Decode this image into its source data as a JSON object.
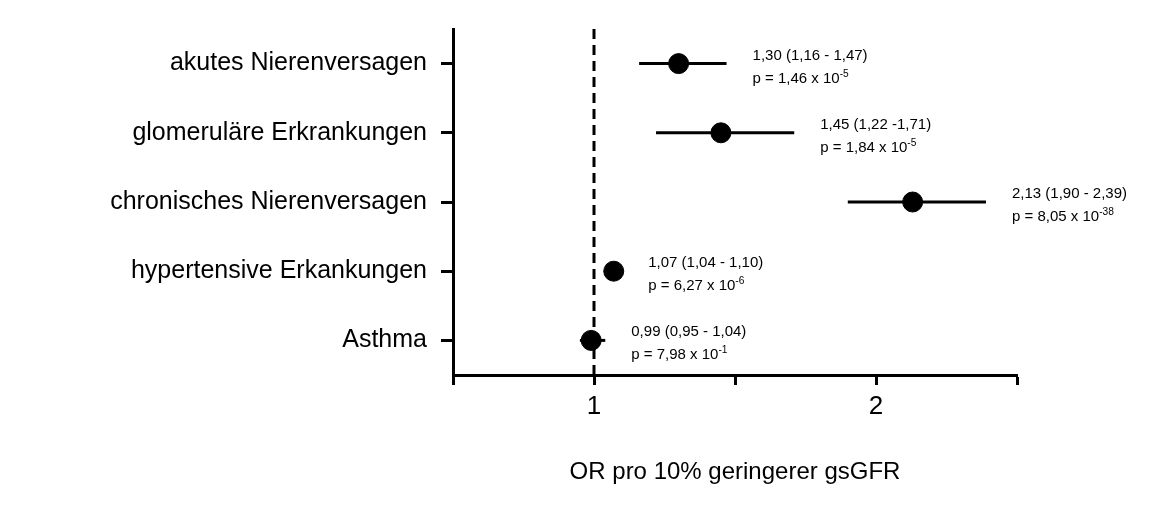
{
  "chart_data": {
    "type": "scatter",
    "orientation": "horizontal",
    "xlabel": "OR pro 10% geringerer gsGFR",
    "categories": [
      "akutes Nierenversagen",
      "glomeruläre Erkrankungen",
      "chronisches Nierenversagen",
      "hypertensive Erkankungen",
      "Asthma"
    ],
    "values": [
      1.3,
      1.45,
      2.13,
      1.07,
      0.99
    ],
    "errors": [
      [
        1.16,
        1.47
      ],
      [
        1.22,
        1.71
      ],
      [
        1.9,
        2.39
      ],
      [
        1.04,
        1.1
      ],
      [
        0.95,
        1.04
      ]
    ],
    "color": "#000000",
    "marker": "circle",
    "xlim": [
      0.5,
      2.5
    ],
    "xticks": [
      {
        "value": 0.5,
        "label": null
      },
      1,
      {
        "value": 1.5,
        "label": null
      },
      2,
      {
        "value": 2.5,
        "label": null
      }
    ],
    "ref_lines": [
      {
        "axis": "x",
        "value": 1,
        "line_style": "dashed",
        "color": "#000000"
      }
    ],
    "annotations": [
      {
        "text": "1,30 (1,16 - 1,47)\np = 1,46 x 10$^{-5}$",
        "x": 1.47,
        "y": "akutes Nierenversagen"
      },
      {
        "text": "1,45 (1,22 -1,71)\np = 1,84 x 10$^{-5}$",
        "x": 1.71,
        "y": "glomeruläre Erkrankungen"
      },
      {
        "text": "2,13 (1,90 - 2,39)\np = 8,05 x 10$^{-38}$",
        "x": 2.39,
        "y": "chronisches Nierenversagen"
      },
      {
        "text": "1,07 (1,04 - 1,10)\np = 6,27 x 10$^{-6}$",
        "x": 1.1,
        "y": "hypertensive Erkankungen"
      },
      {
        "text": "0,99 (0,95 - 1,04)\np = 7,98 x 10$^{-1}$",
        "x": 1.04,
        "y": "Asthma"
      }
    ],
    "grid": false,
    "legend": false
  }
}
